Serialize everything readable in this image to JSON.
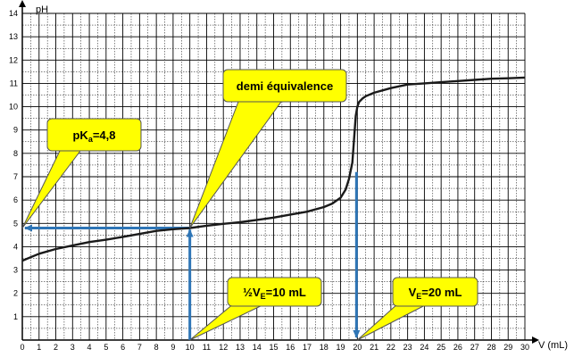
{
  "chart_data": {
    "type": "line",
    "xlabel": "V (mL)",
    "ylabel": "pH",
    "xlim": [
      0,
      30
    ],
    "ylim": [
      0,
      14
    ],
    "x_major_ticks": [
      0,
      1,
      2,
      3,
      4,
      5,
      6,
      7,
      8,
      9,
      10,
      11,
      12,
      13,
      14,
      15,
      16,
      17,
      18,
      19,
      20,
      21,
      22,
      23,
      24,
      25,
      26,
      27,
      28,
      29,
      30
    ],
    "y_major_ticks": [
      1,
      2,
      3,
      4,
      5,
      6,
      7,
      8,
      9,
      10,
      11,
      12,
      13,
      14
    ],
    "grid": true,
    "series": [
      {
        "x": [
          0,
          0.5,
          1,
          2,
          3,
          4,
          5,
          6,
          7,
          8,
          9,
          10,
          11,
          12,
          13,
          14,
          15,
          16,
          17,
          18,
          18.5,
          19,
          19.3,
          19.5,
          19.7,
          19.8,
          19.9,
          20,
          20.1,
          20.3,
          20.5,
          21,
          22,
          23,
          24,
          25,
          26,
          27,
          28,
          29,
          30
        ],
        "y": [
          3.4,
          3.55,
          3.7,
          3.9,
          4.05,
          4.2,
          4.3,
          4.42,
          4.55,
          4.68,
          4.75,
          4.8,
          4.9,
          4.98,
          5.05,
          5.15,
          5.25,
          5.38,
          5.5,
          5.7,
          5.85,
          6.1,
          6.45,
          6.9,
          7.6,
          8.6,
          9.6,
          10.0,
          10.2,
          10.35,
          10.45,
          10.6,
          10.8,
          10.95,
          11.0,
          11.05,
          11.1,
          11.15,
          11.2,
          11.22,
          11.25
        ],
        "color": "#1a1a1a"
      }
    ],
    "annotations": [
      {
        "id": "pka",
        "text_main": "pK",
        "text_sub": "a",
        "text_tail": "=4,8",
        "x": 0,
        "y": 4.8
      },
      {
        "id": "demi",
        "text_main": "demi équivalence",
        "x": 10,
        "y": 4.8
      },
      {
        "id": "half_ve",
        "text_main": "½V",
        "text_sub": "E",
        "text_tail": "=10 mL",
        "x": 10,
        "y": 0
      },
      {
        "id": "ve",
        "text_main": "V",
        "text_sub": "E",
        "text_tail": "=20 mL",
        "x": 20,
        "y": 0
      }
    ],
    "guide_color": "#2e75b6",
    "callout_color": "#ffff00"
  }
}
